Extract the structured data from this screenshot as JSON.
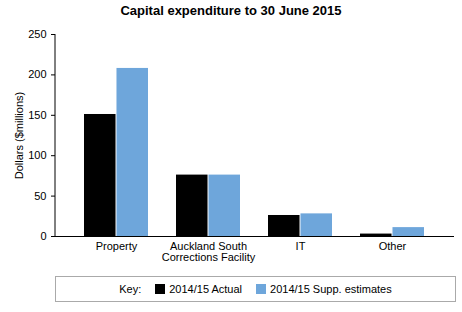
{
  "chart_data": {
    "type": "bar",
    "title": "Capital expenditure to 30 June 2015",
    "y_label": "Dollars ($millions)",
    "categories": [
      "Property",
      "Auckland South\nCorrections Facility",
      "IT",
      "Other"
    ],
    "series": [
      {
        "name": "2014/15 Actual",
        "color": "#000000",
        "values": [
          151,
          76,
          26,
          3
        ]
      },
      {
        "name": "2014/15 Supp. estimates",
        "color": "#6ea6db",
        "values": [
          208,
          76,
          28,
          11
        ]
      }
    ],
    "legend_title": "Key:",
    "legend": "bottom",
    "ylim": [
      0,
      250
    ],
    "yticks": [
      0,
      50,
      100,
      150,
      200,
      250
    ],
    "grid": false
  }
}
